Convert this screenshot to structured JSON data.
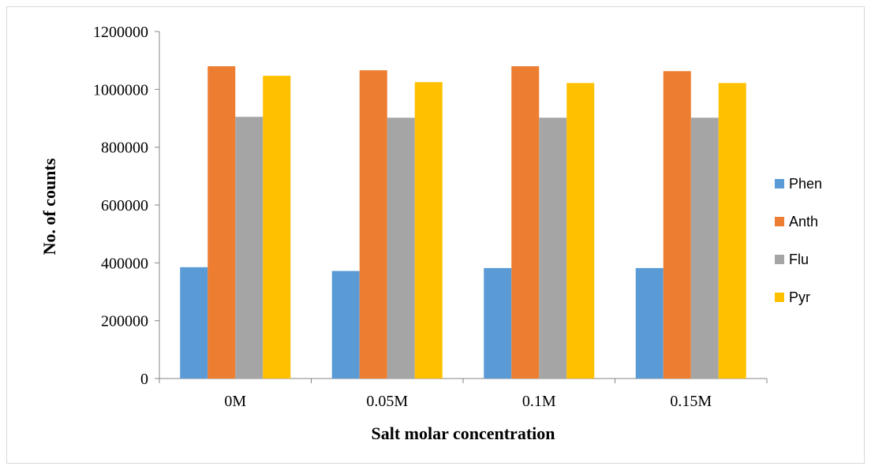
{
  "chart_data": {
    "type": "bar",
    "title": "",
    "xlabel": "Salt molar concentration",
    "ylabel": "No. of counts",
    "categories": [
      "0M",
      "0.05M",
      "0.1M",
      "0.15M"
    ],
    "ylim": [
      0,
      1200000
    ],
    "yticks": [
      0,
      200000,
      400000,
      600000,
      800000,
      1000000,
      1200000
    ],
    "ytick_labels": [
      "0",
      "200000",
      "400000",
      "600000",
      "800000",
      "1000000",
      "1200000"
    ],
    "grid": false,
    "legend_position": "right",
    "series": [
      {
        "name": "Phen",
        "color": "#5B9BD5",
        "values": [
          385000,
          372000,
          382000,
          382000
        ]
      },
      {
        "name": "Anth",
        "color": "#ED7D31",
        "values": [
          1080000,
          1066000,
          1080000,
          1063000
        ]
      },
      {
        "name": "Flu",
        "color": "#A5A5A5",
        "values": [
          905000,
          902000,
          902000,
          902000
        ]
      },
      {
        "name": "Pyr",
        "color": "#FFC000",
        "values": [
          1047000,
          1025000,
          1022000,
          1022000
        ]
      }
    ]
  }
}
